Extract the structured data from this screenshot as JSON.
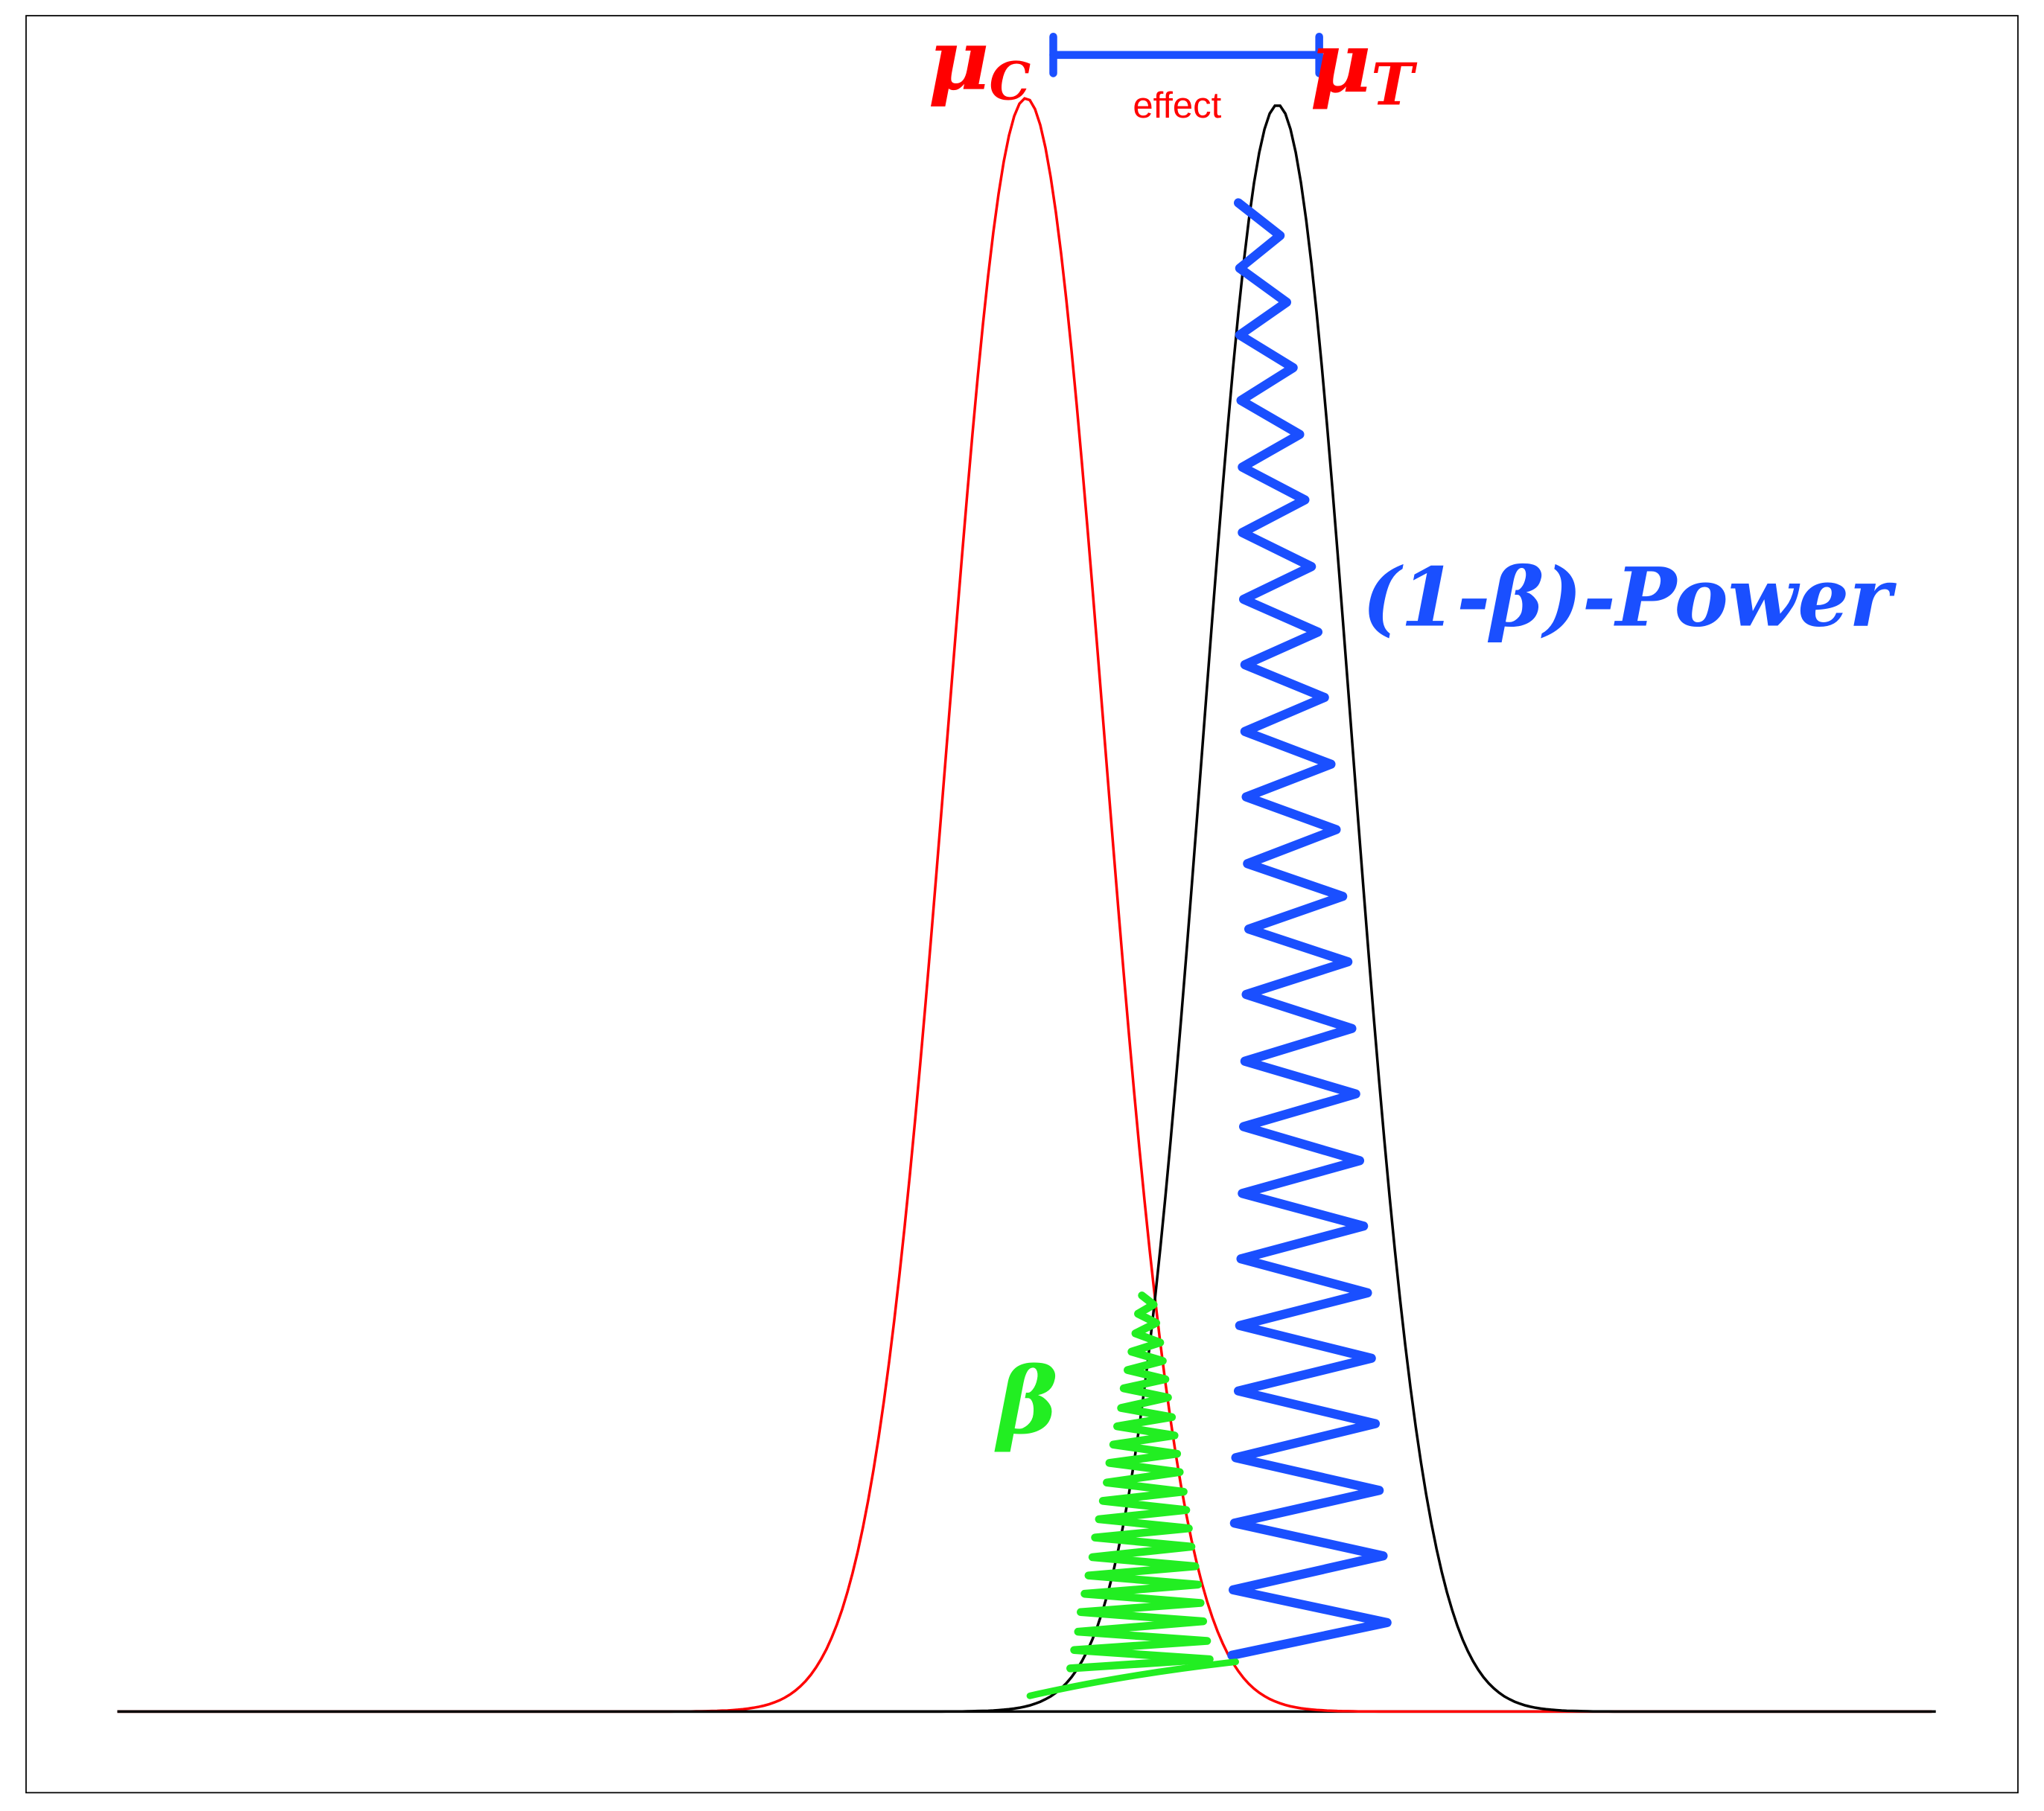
{
  "annotations": {
    "mu_control": {
      "symbol": "μ",
      "subscript": "C"
    },
    "mu_treatment": {
      "symbol": "μ",
      "subscript": "T"
    },
    "effect": "effect",
    "power": "(1-β)-Power",
    "beta": "β"
  }
}
